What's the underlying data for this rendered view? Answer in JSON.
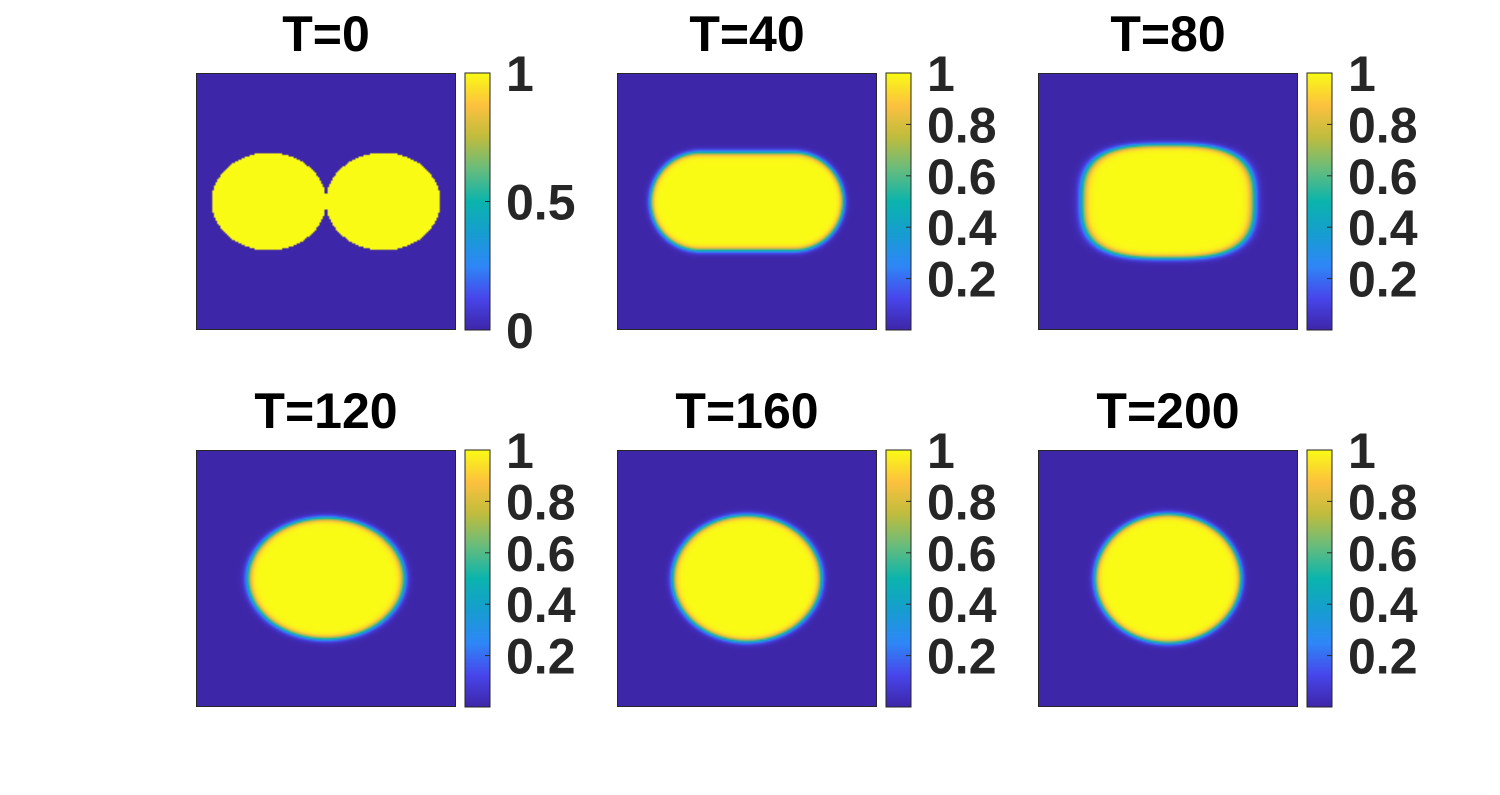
{
  "chart_data": [
    {
      "type": "heatmap",
      "title": "T=0",
      "colorbar": {
        "ticks": [
          "0",
          "0.5",
          "1"
        ],
        "range": [
          0,
          1
        ]
      },
      "field": {
        "shape": "two-discs",
        "centers": [
          [
            -0.22,
            0.0
          ],
          [
            0.22,
            0.0
          ]
        ],
        "radii": [
          [
            0.22,
            0.19
          ],
          [
            0.22,
            0.19
          ]
        ],
        "interface_width": 0.0
      }
    },
    {
      "type": "heatmap",
      "title": "T=40",
      "colorbar": {
        "ticks": [
          "0.2",
          "0.4",
          "0.6",
          "0.8",
          "1"
        ],
        "range": [
          0,
          1
        ]
      },
      "field": {
        "shape": "capsule",
        "center": [
          0.0,
          0.0
        ],
        "half_length": 0.37,
        "half_height": 0.19,
        "interface_width": 0.012
      }
    },
    {
      "type": "heatmap",
      "title": "T=80",
      "colorbar": {
        "ticks": [
          "0.2",
          "0.4",
          "0.6",
          "0.8",
          "1"
        ],
        "range": [
          0,
          1
        ]
      },
      "field": {
        "shape": "superellipse",
        "center": [
          0.0,
          0.0
        ],
        "semi_axes": [
          0.33,
          0.22
        ],
        "exponent": 3,
        "interface_width": 0.012
      }
    },
    {
      "type": "heatmap",
      "title": "T=120",
      "colorbar": {
        "ticks": [
          "0.2",
          "0.4",
          "0.6",
          "0.8",
          "1"
        ],
        "range": [
          0,
          1
        ]
      },
      "field": {
        "shape": "ellipse",
        "center": [
          0.0,
          0.0
        ],
        "semi_axes": [
          0.3,
          0.235
        ],
        "interface_width": 0.012
      }
    },
    {
      "type": "heatmap",
      "title": "T=160",
      "colorbar": {
        "ticks": [
          "0.2",
          "0.4",
          "0.6",
          "0.8",
          "1"
        ],
        "range": [
          0,
          1
        ]
      },
      "field": {
        "shape": "ellipse",
        "center": [
          0.0,
          0.0
        ],
        "semi_axes": [
          0.285,
          0.245
        ],
        "interface_width": 0.012
      }
    },
    {
      "type": "heatmap",
      "title": "T=200",
      "colorbar": {
        "ticks": [
          "0.2",
          "0.4",
          "0.6",
          "0.8",
          "1"
        ],
        "range": [
          0,
          1
        ]
      },
      "field": {
        "shape": "ellipse",
        "center": [
          0.0,
          0.0
        ],
        "semi_axes": [
          0.28,
          0.25
        ],
        "interface_width": 0.012
      }
    }
  ],
  "colormap": {
    "name": "parula",
    "stops": [
      "#3e26a8",
      "#4746eb",
      "#2e87f7",
      "#169dd0",
      "#0ab4ac",
      "#66bc7d",
      "#bfbc3d",
      "#fcc13e",
      "#f9fb15"
    ]
  }
}
